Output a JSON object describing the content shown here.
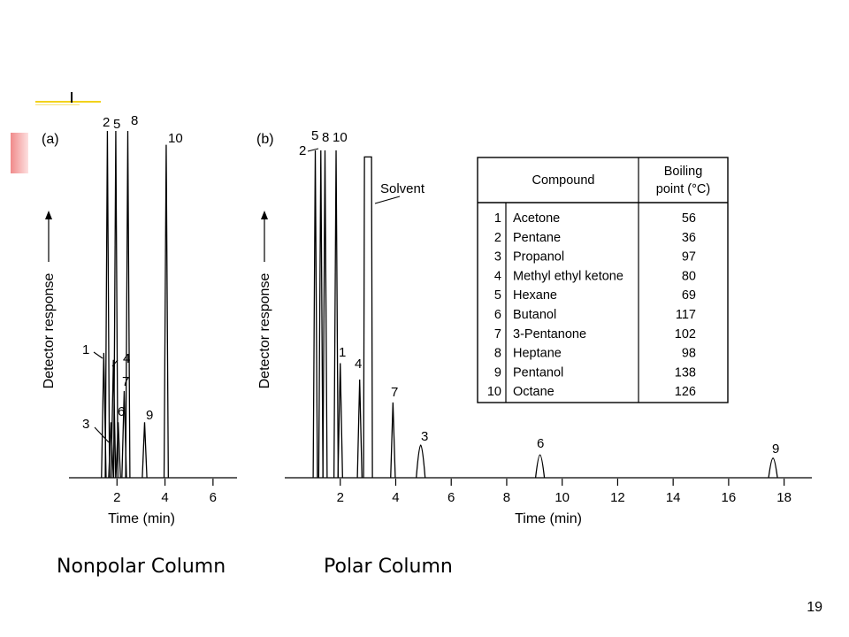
{
  "slide": {
    "page_number": "19",
    "caption_left": "Nonpolar Column",
    "caption_right": "Polar Column",
    "colors": {
      "accent_yellow": "#f2d21c",
      "accent_red": "#f0a8a8",
      "ink": "#000000"
    }
  },
  "chart_data": [
    {
      "type": "line",
      "panel_label": "(a)",
      "title": "",
      "xlabel": "Time (min)",
      "ylabel": "Detector response",
      "xlim": [
        0,
        7
      ],
      "x_ticks": [
        2,
        4,
        6
      ],
      "ylim": [
        0,
        1
      ],
      "grid": false,
      "peaks": [
        {
          "label": "1",
          "time": 1.45,
          "height": 0.36
        },
        {
          "label": "2",
          "time": 1.6,
          "height": 1.0
        },
        {
          "label": "3",
          "time": 1.75,
          "height": 0.16
        },
        {
          "label": "4",
          "time": 1.85,
          "height": 0.34
        },
        {
          "label": "5",
          "time": 1.95,
          "height": 1.0
        },
        {
          "label": "6",
          "time": 2.05,
          "height": 0.16
        },
        {
          "label": "7",
          "time": 2.3,
          "height": 0.25
        },
        {
          "label": "8",
          "time": 2.45,
          "height": 1.0
        },
        {
          "label": "9",
          "time": 3.15,
          "height": 0.16
        },
        {
          "label": "10",
          "time": 4.05,
          "height": 0.96
        }
      ]
    },
    {
      "type": "line",
      "panel_label": "(b)",
      "title": "",
      "xlabel": "Time (min)",
      "ylabel": "Detector response",
      "xlim": [
        0,
        19
      ],
      "x_ticks": [
        2,
        4,
        6,
        8,
        10,
        12,
        14,
        16,
        18
      ],
      "ylim": [
        0,
        1
      ],
      "grid": false,
      "annotation": "Solvent",
      "peaks": [
        {
          "label": "2",
          "time": 1.1,
          "height": 1.0
        },
        {
          "label": "5",
          "time": 1.3,
          "height": 1.0
        },
        {
          "label": "8",
          "time": 1.45,
          "height": 1.0
        },
        {
          "label": "10",
          "time": 1.85,
          "height": 1.0
        },
        {
          "label": "1",
          "time": 2.0,
          "height": 0.35
        },
        {
          "label": "4",
          "time": 2.7,
          "height": 0.3
        },
        {
          "label": "Solvent",
          "time": 3.0,
          "height": 0.98
        },
        {
          "label": "7",
          "time": 3.9,
          "height": 0.23
        },
        {
          "label": "3",
          "time": 4.9,
          "height": 0.1
        },
        {
          "label": "6",
          "time": 9.2,
          "height": 0.07
        },
        {
          "label": "9",
          "time": 17.6,
          "height": 0.06
        }
      ]
    },
    {
      "type": "table",
      "headers": [
        "",
        "Compound",
        "Boiling point (°C)"
      ],
      "rows": [
        [
          "1",
          "Acetone",
          "56"
        ],
        [
          "2",
          "Pentane",
          "36"
        ],
        [
          "3",
          "Propanol",
          "97"
        ],
        [
          "4",
          "Methyl ethyl ketone",
          "80"
        ],
        [
          "5",
          "Hexane",
          "69"
        ],
        [
          "6",
          "Butanol",
          "117"
        ],
        [
          "7",
          "3-Pentanone",
          "102"
        ],
        [
          "8",
          "Heptane",
          "98"
        ],
        [
          "9",
          "Pentanol",
          "138"
        ],
        [
          "10",
          "Octane",
          "126"
        ]
      ]
    }
  ]
}
